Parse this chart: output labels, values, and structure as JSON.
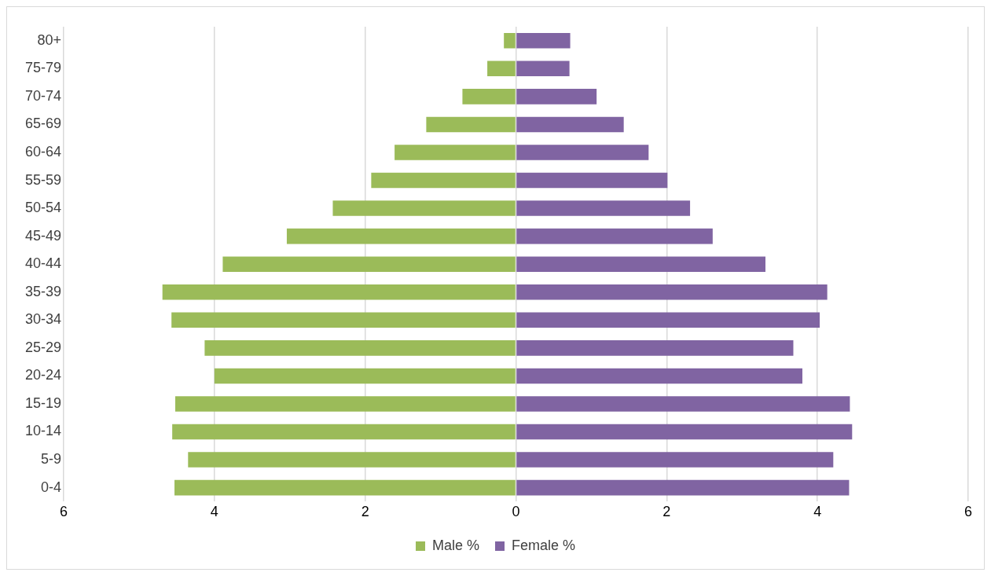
{
  "chart_data": {
    "type": "bar",
    "orientation": "horizontal",
    "stacked": true,
    "categories": [
      "80+",
      "75-79",
      "70-74",
      "65-69",
      "60-64",
      "55-59",
      "50-54",
      "45-49",
      "40-44",
      "35-39",
      "30-34",
      "25-29",
      "20-24",
      "15-19",
      "10-14",
      "5-9",
      "0-4"
    ],
    "series": [
      {
        "name": "Male %",
        "color": "#9bbb59",
        "values": [
          -0.16,
          -0.38,
          -0.71,
          -1.19,
          -1.61,
          -1.92,
          -2.43,
          -3.04,
          -3.89,
          -4.69,
          -4.57,
          -4.13,
          -4.0,
          -4.52,
          -4.56,
          -4.35,
          -4.53
        ]
      },
      {
        "name": "Female %",
        "color": "#8064a2",
        "values": [
          0.72,
          0.71,
          1.07,
          1.43,
          1.76,
          2.01,
          2.31,
          2.61,
          3.31,
          4.13,
          4.03,
          3.68,
          3.8,
          4.43,
          4.46,
          4.21,
          4.42
        ]
      }
    ],
    "xlim": [
      -6,
      6
    ],
    "xticks": [
      {
        "value": -6,
        "label": "6"
      },
      {
        "value": -4,
        "label": "4"
      },
      {
        "value": -2,
        "label": "2"
      },
      0,
      2,
      4,
      6
    ],
    "grid": "x",
    "legend": "bottom"
  }
}
